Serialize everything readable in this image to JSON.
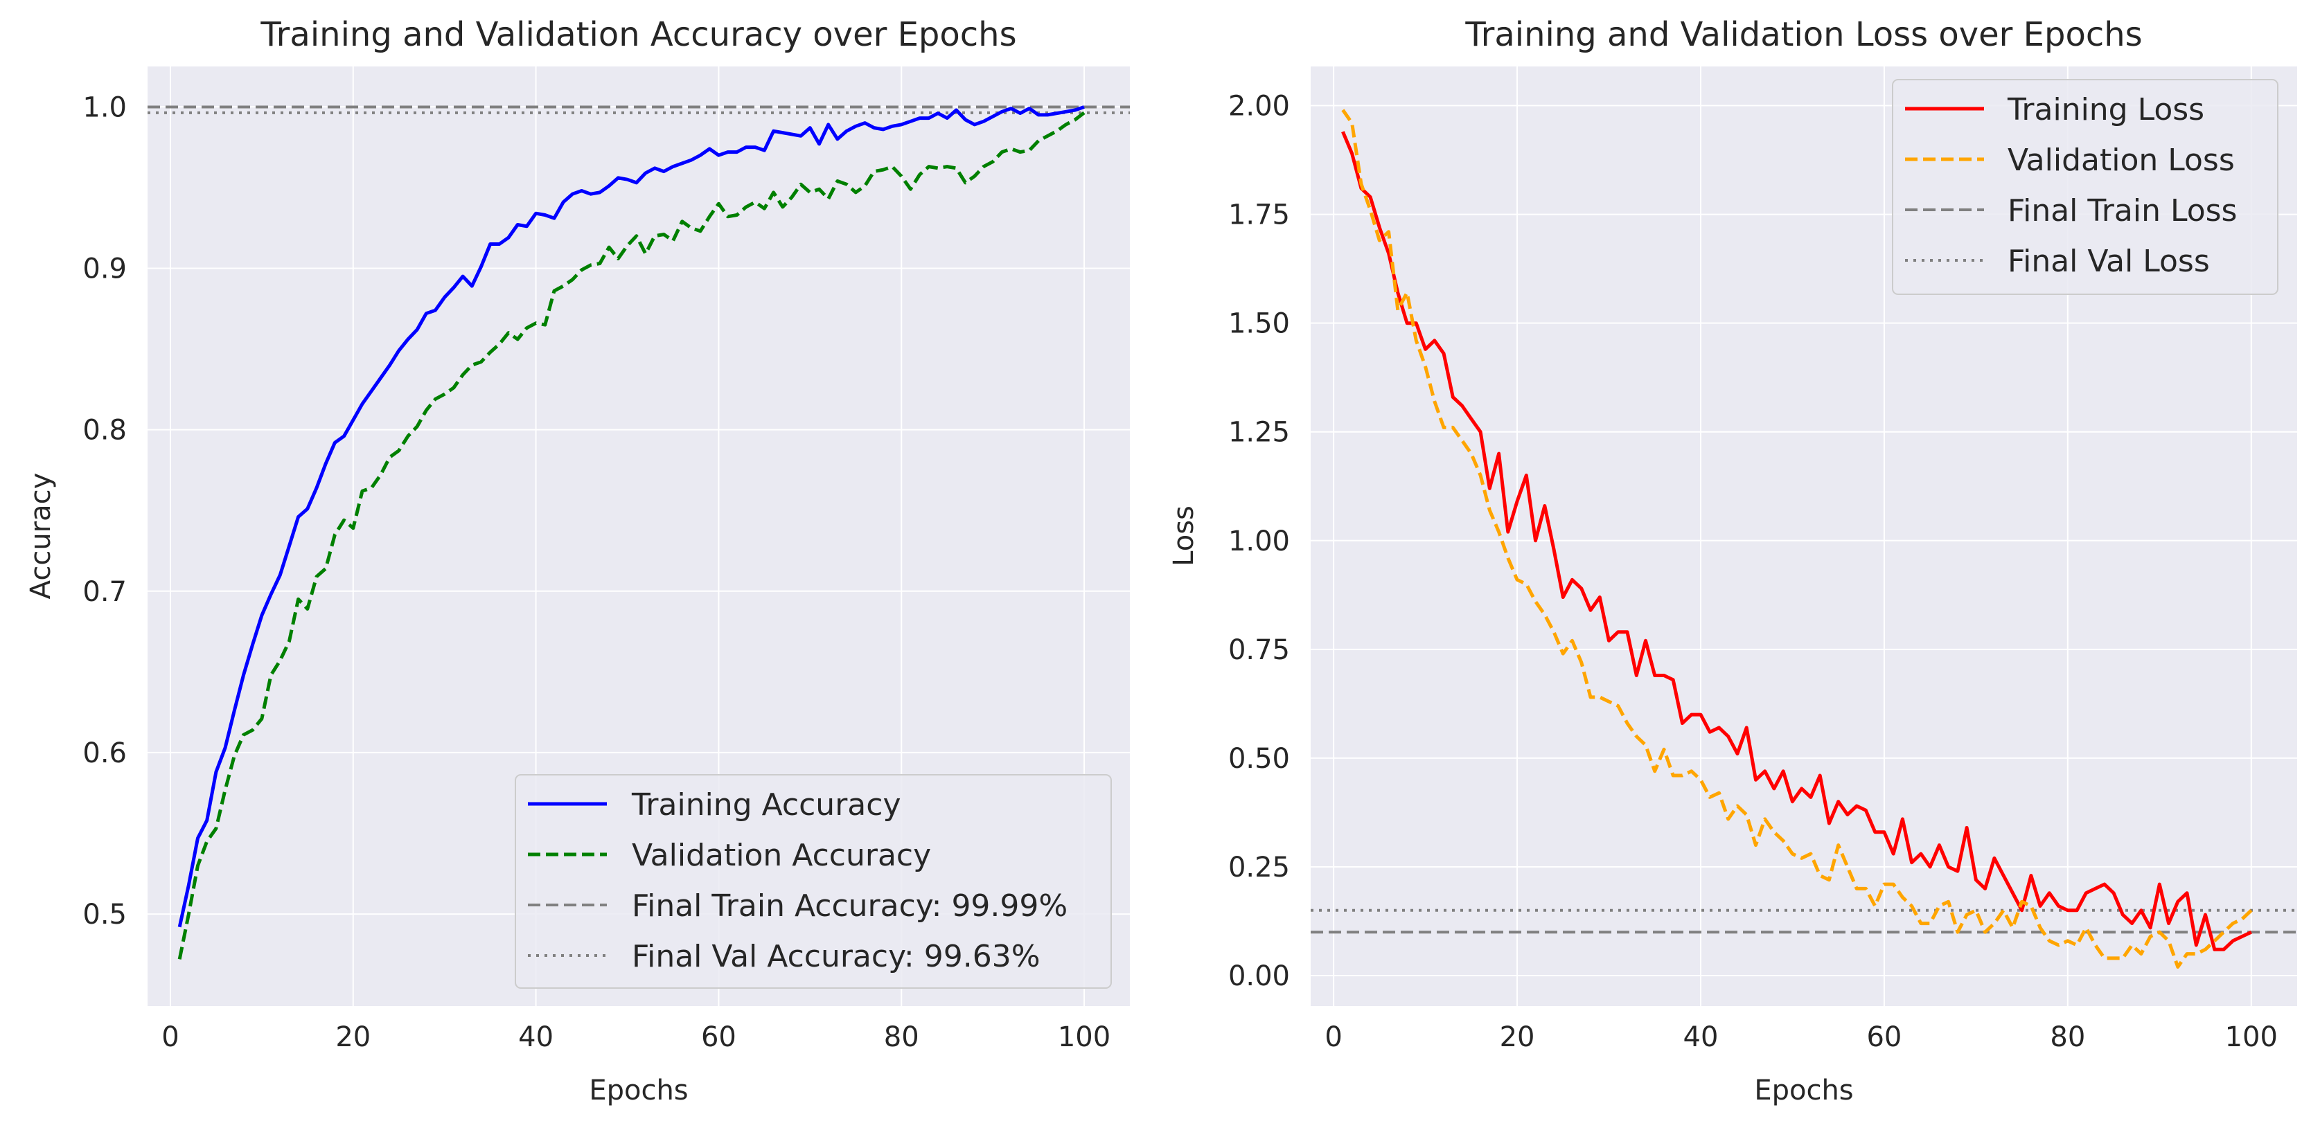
{
  "chart_data": [
    {
      "type": "line",
      "title": "Training and Validation Accuracy over Epochs",
      "xlabel": "Epochs",
      "ylabel": "Accuracy",
      "xlim": [
        -2.5,
        105
      ],
      "ylim": [
        0.443,
        1.025
      ],
      "xticks": [
        0,
        20,
        40,
        60,
        80,
        100
      ],
      "yticks": [
        0.5,
        0.6,
        0.7,
        0.8,
        0.9,
        1.0
      ],
      "ytick_labels": [
        "0.5",
        "0.6",
        "0.7",
        "0.8",
        "0.9",
        "1.0"
      ],
      "grid": true,
      "legend_position": "lower-right",
      "series": [
        {
          "name": "Training Accuracy",
          "color": "#0000ff",
          "style": "solid",
          "x": [
            1,
            2,
            3,
            4,
            5,
            6,
            7,
            8,
            9,
            10,
            11,
            12,
            13,
            14,
            15,
            16,
            17,
            18,
            19,
            20,
            21,
            22,
            23,
            24,
            25,
            26,
            27,
            28,
            29,
            30,
            31,
            32,
            33,
            34,
            35,
            36,
            37,
            38,
            39,
            40,
            41,
            42,
            43,
            44,
            45,
            46,
            47,
            48,
            49,
            50,
            51,
            52,
            53,
            54,
            55,
            56,
            57,
            58,
            59,
            60,
            61,
            62,
            63,
            64,
            65,
            66,
            67,
            68,
            69,
            70,
            71,
            72,
            73,
            74,
            75,
            76,
            77,
            78,
            79,
            80,
            81,
            82,
            83,
            84,
            85,
            86,
            87,
            88,
            89,
            90,
            91,
            92,
            93,
            94,
            95,
            96,
            97,
            98,
            99,
            100
          ],
          "values": [
            0.492,
            0.518,
            0.547,
            0.558,
            0.588,
            0.603,
            0.626,
            0.648,
            0.667,
            0.685,
            0.698,
            0.71,
            0.728,
            0.746,
            0.751,
            0.764,
            0.779,
            0.792,
            0.796,
            0.806,
            0.816,
            0.824,
            0.832,
            0.84,
            0.849,
            0.856,
            0.862,
            0.872,
            0.874,
            0.882,
            0.888,
            0.895,
            0.889,
            0.901,
            0.915,
            0.915,
            0.919,
            0.927,
            0.926,
            0.934,
            0.933,
            0.931,
            0.941,
            0.946,
            0.948,
            0.946,
            0.947,
            0.951,
            0.956,
            0.955,
            0.953,
            0.959,
            0.962,
            0.96,
            0.963,
            0.965,
            0.967,
            0.97,
            0.974,
            0.97,
            0.972,
            0.972,
            0.975,
            0.975,
            0.973,
            0.985,
            0.984,
            0.983,
            0.982,
            0.987,
            0.977,
            0.989,
            0.98,
            0.985,
            0.988,
            0.99,
            0.987,
            0.986,
            0.988,
            0.989,
            0.991,
            0.993,
            0.993,
            0.996,
            0.993,
            0.998,
            0.992,
            0.989,
            0.991,
            0.994,
            0.997,
            0.999,
            0.996,
            0.999,
            0.995,
            0.995,
            0.996,
            0.997,
            0.998,
            0.9999
          ]
        },
        {
          "name": "Validation Accuracy",
          "color": "#008000",
          "style": "dashed",
          "x": [
            1,
            2,
            3,
            4,
            5,
            6,
            7,
            8,
            9,
            10,
            11,
            12,
            13,
            14,
            15,
            16,
            17,
            18,
            19,
            20,
            21,
            22,
            23,
            24,
            25,
            26,
            27,
            28,
            29,
            30,
            31,
            32,
            33,
            34,
            35,
            36,
            37,
            38,
            39,
            40,
            41,
            42,
            43,
            44,
            45,
            46,
            47,
            48,
            49,
            50,
            51,
            52,
            53,
            54,
            55,
            56,
            57,
            58,
            59,
            60,
            61,
            62,
            63,
            64,
            65,
            66,
            67,
            68,
            69,
            70,
            71,
            72,
            73,
            74,
            75,
            76,
            77,
            78,
            79,
            80,
            81,
            82,
            83,
            84,
            85,
            86,
            87,
            88,
            89,
            90,
            91,
            92,
            93,
            94,
            95,
            96,
            97,
            98,
            99,
            100
          ],
          "values": [
            0.472,
            0.5,
            0.53,
            0.545,
            0.553,
            0.577,
            0.598,
            0.611,
            0.614,
            0.621,
            0.648,
            0.657,
            0.669,
            0.695,
            0.689,
            0.709,
            0.714,
            0.735,
            0.744,
            0.739,
            0.762,
            0.764,
            0.772,
            0.783,
            0.787,
            0.796,
            0.802,
            0.812,
            0.819,
            0.822,
            0.826,
            0.834,
            0.84,
            0.842,
            0.848,
            0.853,
            0.86,
            0.856,
            0.863,
            0.866,
            0.865,
            0.886,
            0.889,
            0.893,
            0.899,
            0.902,
            0.903,
            0.913,
            0.906,
            0.914,
            0.92,
            0.909,
            0.92,
            0.921,
            0.917,
            0.929,
            0.925,
            0.923,
            0.932,
            0.94,
            0.932,
            0.933,
            0.938,
            0.941,
            0.937,
            0.947,
            0.938,
            0.944,
            0.952,
            0.947,
            0.949,
            0.943,
            0.954,
            0.952,
            0.947,
            0.951,
            0.96,
            0.961,
            0.963,
            0.957,
            0.949,
            0.958,
            0.963,
            0.962,
            0.963,
            0.962,
            0.953,
            0.957,
            0.963,
            0.966,
            0.972,
            0.974,
            0.972,
            0.973,
            0.979,
            0.982,
            0.985,
            0.989,
            0.992,
            0.9963
          ]
        }
      ],
      "reference_lines": [
        {
          "name": "Final Train Accuracy: 99.99%",
          "value": 0.9999,
          "color": "#808080",
          "style": "dashed"
        },
        {
          "name": "Final Val Accuracy: 99.63%",
          "value": 0.9963,
          "color": "#808080",
          "style": "dotted"
        }
      ]
    },
    {
      "type": "line",
      "title": "Training and Validation Loss over Epochs",
      "xlabel": "Epochs",
      "ylabel": "Loss",
      "xlim": [
        -2.5,
        105
      ],
      "ylim": [
        -0.07,
        2.09
      ],
      "xticks": [
        0,
        20,
        40,
        60,
        80,
        100
      ],
      "yticks": [
        0.0,
        0.25,
        0.5,
        0.75,
        1.0,
        1.25,
        1.5,
        1.75,
        2.0
      ],
      "ytick_labels": [
        "0.00",
        "0.25",
        "0.50",
        "0.75",
        "1.00",
        "1.25",
        "1.50",
        "1.75",
        "2.00"
      ],
      "grid": true,
      "legend_position": "upper-right",
      "series": [
        {
          "name": "Training Loss",
          "color": "#ff0000",
          "style": "solid",
          "x": [
            1,
            2,
            3,
            4,
            5,
            6,
            7,
            8,
            9,
            10,
            11,
            12,
            13,
            14,
            15,
            16,
            17,
            18,
            19,
            20,
            21,
            22,
            23,
            24,
            25,
            26,
            27,
            28,
            29,
            30,
            31,
            32,
            33,
            34,
            35,
            36,
            37,
            38,
            39,
            40,
            41,
            42,
            43,
            44,
            45,
            46,
            47,
            48,
            49,
            50,
            51,
            52,
            53,
            54,
            55,
            56,
            57,
            58,
            59,
            60,
            61,
            62,
            63,
            64,
            65,
            66,
            67,
            68,
            69,
            70,
            71,
            72,
            73,
            74,
            75,
            76,
            77,
            78,
            79,
            80,
            81,
            82,
            83,
            84,
            85,
            86,
            87,
            88,
            89,
            90,
            91,
            92,
            93,
            94,
            95,
            96,
            97,
            98,
            99,
            100
          ],
          "values": [
            1.94,
            1.89,
            1.81,
            1.79,
            1.72,
            1.66,
            1.57,
            1.5,
            1.5,
            1.44,
            1.46,
            1.43,
            1.33,
            1.31,
            1.28,
            1.25,
            1.12,
            1.2,
            1.02,
            1.09,
            1.15,
            1.0,
            1.08,
            0.98,
            0.87,
            0.91,
            0.89,
            0.84,
            0.87,
            0.77,
            0.79,
            0.79,
            0.69,
            0.77,
            0.69,
            0.69,
            0.68,
            0.58,
            0.6,
            0.6,
            0.56,
            0.57,
            0.55,
            0.51,
            0.57,
            0.45,
            0.47,
            0.43,
            0.47,
            0.4,
            0.43,
            0.41,
            0.46,
            0.35,
            0.4,
            0.37,
            0.39,
            0.38,
            0.33,
            0.33,
            0.28,
            0.36,
            0.26,
            0.28,
            0.25,
            0.3,
            0.25,
            0.24,
            0.34,
            0.22,
            0.2,
            0.27,
            0.23,
            0.19,
            0.15,
            0.23,
            0.16,
            0.19,
            0.16,
            0.15,
            0.15,
            0.19,
            0.2,
            0.21,
            0.19,
            0.14,
            0.12,
            0.15,
            0.11,
            0.21,
            0.12,
            0.17,
            0.19,
            0.07,
            0.14,
            0.06,
            0.06,
            0.08,
            0.09,
            0.1
          ]
        },
        {
          "name": "Validation Loss",
          "color": "#ffa500",
          "style": "dashed",
          "x": [
            1,
            2,
            3,
            4,
            5,
            6,
            7,
            8,
            9,
            10,
            11,
            12,
            13,
            14,
            15,
            16,
            17,
            18,
            19,
            20,
            21,
            22,
            23,
            24,
            25,
            26,
            27,
            28,
            29,
            30,
            31,
            32,
            33,
            34,
            35,
            36,
            37,
            38,
            39,
            40,
            41,
            42,
            43,
            44,
            45,
            46,
            47,
            48,
            49,
            50,
            51,
            52,
            53,
            54,
            55,
            56,
            57,
            58,
            59,
            60,
            61,
            62,
            63,
            64,
            65,
            66,
            67,
            68,
            69,
            70,
            71,
            72,
            73,
            74,
            75,
            76,
            77,
            78,
            79,
            80,
            81,
            82,
            83,
            84,
            85,
            86,
            87,
            88,
            89,
            90,
            91,
            92,
            93,
            94,
            95,
            96,
            97,
            98,
            99,
            100
          ],
          "values": [
            1.99,
            1.96,
            1.82,
            1.76,
            1.69,
            1.71,
            1.53,
            1.57,
            1.46,
            1.4,
            1.32,
            1.26,
            1.26,
            1.23,
            1.2,
            1.15,
            1.07,
            1.02,
            0.96,
            0.91,
            0.9,
            0.86,
            0.83,
            0.79,
            0.74,
            0.77,
            0.72,
            0.64,
            0.64,
            0.63,
            0.62,
            0.58,
            0.55,
            0.53,
            0.47,
            0.52,
            0.46,
            0.46,
            0.47,
            0.45,
            0.41,
            0.42,
            0.36,
            0.39,
            0.37,
            0.3,
            0.36,
            0.33,
            0.31,
            0.28,
            0.27,
            0.28,
            0.23,
            0.22,
            0.3,
            0.25,
            0.2,
            0.2,
            0.16,
            0.21,
            0.21,
            0.18,
            0.16,
            0.12,
            0.12,
            0.16,
            0.17,
            0.1,
            0.14,
            0.15,
            0.1,
            0.12,
            0.15,
            0.11,
            0.17,
            0.16,
            0.11,
            0.08,
            0.07,
            0.08,
            0.07,
            0.11,
            0.07,
            0.04,
            0.04,
            0.04,
            0.07,
            0.05,
            0.09,
            0.1,
            0.08,
            0.02,
            0.05,
            0.05,
            0.06,
            0.08,
            0.1,
            0.12,
            0.13,
            0.15
          ]
        }
      ],
      "reference_lines": [
        {
          "name": "Final Train Loss",
          "value": 0.1,
          "color": "#808080",
          "style": "dashed"
        },
        {
          "name": "Final Val Loss",
          "value": 0.15,
          "color": "#808080",
          "style": "dotted"
        }
      ]
    }
  ]
}
